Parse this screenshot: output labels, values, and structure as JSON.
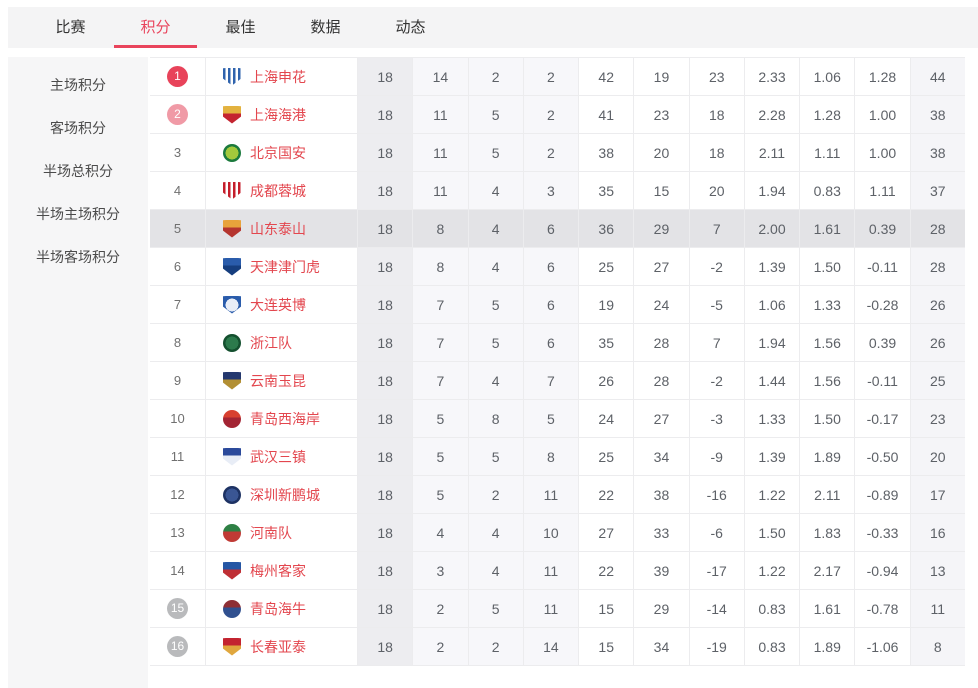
{
  "colors": {
    "accent": "#e9445c",
    "team_name": "#e3464e",
    "badge_red": "#e8435a",
    "badge_pink": "#f09aa6",
    "badge_gray": "#b9babc",
    "row_highlight": "#e3e3e6",
    "tabbar_bg": "#f4f4f5",
    "sidebar_bg": "#f6f6f7"
  },
  "tabs": {
    "items": [
      {
        "label": "比赛",
        "active": false
      },
      {
        "label": "积分",
        "active": true
      },
      {
        "label": "最佳",
        "active": false
      },
      {
        "label": "数据",
        "active": false
      },
      {
        "label": "动态",
        "active": false
      }
    ]
  },
  "sidebar": {
    "items": [
      "主场积分",
      "客场积分",
      "半场总积分",
      "半场主场积分",
      "半场客场积分"
    ]
  },
  "standings": {
    "highlight_rank": "5",
    "rows": [
      {
        "rank": "1",
        "badge": "red",
        "team": "上海申花",
        "logo": {
          "shape": "shield",
          "style": "stripes",
          "c1": "#2f63ad",
          "c2": "#ffffff"
        },
        "values": [
          "18",
          "14",
          "2",
          "2",
          "42",
          "19",
          "23",
          "2.33",
          "1.06",
          "1.28",
          "44"
        ]
      },
      {
        "rank": "2",
        "badge": "pink",
        "team": "上海海港",
        "logo": {
          "shape": "shield",
          "style": "duo",
          "c1": "#e3b23f",
          "c2": "#c42430"
        },
        "values": [
          "18",
          "11",
          "5",
          "2",
          "41",
          "23",
          "18",
          "2.28",
          "1.28",
          "1.00",
          "38"
        ]
      },
      {
        "rank": "3",
        "badge": null,
        "team": "北京国安",
        "logo": {
          "shape": "circle",
          "style": "ring",
          "c1": "#1b7a3d",
          "c2": "#a3c93c"
        },
        "values": [
          "18",
          "11",
          "5",
          "2",
          "38",
          "20",
          "18",
          "2.11",
          "1.11",
          "1.00",
          "38"
        ]
      },
      {
        "rank": "4",
        "badge": null,
        "team": "成都蓉城",
        "logo": {
          "shape": "shield",
          "style": "stripes",
          "c1": "#c51e2b",
          "c2": "#ffffff"
        },
        "values": [
          "18",
          "11",
          "4",
          "3",
          "35",
          "15",
          "20",
          "1.94",
          "0.83",
          "1.11",
          "37"
        ]
      },
      {
        "rank": "5",
        "badge": null,
        "team": "山东泰山",
        "logo": {
          "shape": "shield",
          "style": "duo",
          "c1": "#e8a33b",
          "c2": "#b5352f"
        },
        "values": [
          "18",
          "8",
          "4",
          "6",
          "36",
          "29",
          "7",
          "2.00",
          "1.61",
          "0.39",
          "28"
        ]
      },
      {
        "rank": "6",
        "badge": null,
        "team": "天津津门虎",
        "logo": {
          "shape": "shield",
          "style": "duo",
          "c1": "#2a5cab",
          "c2": "#163e7e"
        },
        "values": [
          "18",
          "8",
          "4",
          "6",
          "25",
          "27",
          "-2",
          "1.39",
          "1.50",
          "-0.11",
          "28"
        ]
      },
      {
        "rank": "7",
        "badge": null,
        "team": "大连英博",
        "logo": {
          "shape": "shield",
          "style": "ring",
          "c1": "#2a5cab",
          "c2": "#e9eef7"
        },
        "values": [
          "18",
          "7",
          "5",
          "6",
          "19",
          "24",
          "-5",
          "1.06",
          "1.33",
          "-0.28",
          "26"
        ]
      },
      {
        "rank": "8",
        "badge": null,
        "team": "浙江队",
        "logo": {
          "shape": "circle",
          "style": "ring",
          "c1": "#14502f",
          "c2": "#2c7a4c"
        },
        "values": [
          "18",
          "7",
          "5",
          "6",
          "35",
          "28",
          "7",
          "1.94",
          "1.56",
          "0.39",
          "26"
        ]
      },
      {
        "rank": "9",
        "badge": null,
        "team": "云南玉昆",
        "logo": {
          "shape": "shield",
          "style": "duo",
          "c1": "#24386e",
          "c2": "#b28f34"
        },
        "values": [
          "18",
          "7",
          "4",
          "7",
          "26",
          "28",
          "-2",
          "1.44",
          "1.56",
          "-0.11",
          "25"
        ]
      },
      {
        "rank": "10",
        "badge": null,
        "team": "青岛西海岸",
        "logo": {
          "shape": "circle",
          "style": "duo",
          "c1": "#d8402f",
          "c2": "#a32433"
        },
        "values": [
          "18",
          "5",
          "8",
          "5",
          "24",
          "27",
          "-3",
          "1.33",
          "1.50",
          "-0.17",
          "23"
        ]
      },
      {
        "rank": "11",
        "badge": null,
        "team": "武汉三镇",
        "logo": {
          "shape": "shield",
          "style": "duo",
          "c1": "#2b4a9b",
          "c2": "#e8edf6"
        },
        "values": [
          "18",
          "5",
          "5",
          "8",
          "25",
          "34",
          "-9",
          "1.39",
          "1.89",
          "-0.50",
          "20"
        ]
      },
      {
        "rank": "12",
        "badge": null,
        "team": "深圳新鹏城",
        "logo": {
          "shape": "circle",
          "style": "ring",
          "c1": "#1d3263",
          "c2": "#3a5694"
        },
        "values": [
          "18",
          "5",
          "2",
          "11",
          "22",
          "38",
          "-16",
          "1.22",
          "2.11",
          "-0.89",
          "17"
        ]
      },
      {
        "rank": "13",
        "badge": null,
        "team": "河南队",
        "logo": {
          "shape": "circle",
          "style": "duo",
          "c1": "#2e8044",
          "c2": "#c03a35"
        },
        "values": [
          "18",
          "4",
          "4",
          "10",
          "27",
          "33",
          "-6",
          "1.50",
          "1.83",
          "-0.33",
          "16"
        ]
      },
      {
        "rank": "14",
        "badge": null,
        "team": "梅州客家",
        "logo": {
          "shape": "shield",
          "style": "duo",
          "c1": "#2456a4",
          "c2": "#bf2f35"
        },
        "values": [
          "18",
          "3",
          "4",
          "11",
          "22",
          "39",
          "-17",
          "1.22",
          "2.17",
          "-0.94",
          "13"
        ]
      },
      {
        "rank": "15",
        "badge": "gray",
        "team": "青岛海牛",
        "logo": {
          "shape": "circle",
          "style": "duo",
          "c1": "#8e2f35",
          "c2": "#30508f"
        },
        "values": [
          "18",
          "2",
          "5",
          "11",
          "15",
          "29",
          "-14",
          "0.83",
          "1.61",
          "-0.78",
          "11"
        ]
      },
      {
        "rank": "16",
        "badge": "gray",
        "team": "长春亚泰",
        "logo": {
          "shape": "shield",
          "style": "duo",
          "c1": "#c32430",
          "c2": "#e0a73e"
        },
        "values": [
          "18",
          "2",
          "2",
          "14",
          "15",
          "34",
          "-19",
          "0.83",
          "1.89",
          "-1.06",
          "8"
        ]
      }
    ]
  }
}
